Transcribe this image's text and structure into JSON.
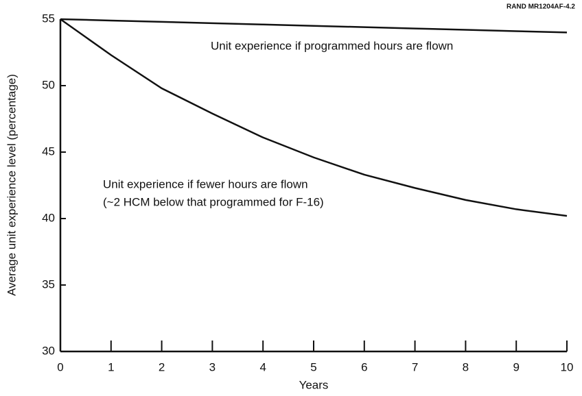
{
  "chart_data": {
    "type": "line",
    "credit": "RAND MR1204AF-4.2",
    "xlabel": "Years",
    "ylabel": "Average unit experience level (percentage)",
    "x": [
      0,
      1,
      2,
      3,
      4,
      5,
      6,
      7,
      8,
      9,
      10
    ],
    "series": [
      {
        "name": "Unit experience if programmed hours are flown",
        "color": "#111111",
        "values": [
          55,
          54.9,
          54.8,
          54.7,
          54.6,
          54.5,
          54.4,
          54.3,
          54.2,
          54.1,
          54.0
        ]
      },
      {
        "name": "Unit experience if fewer hours are flown",
        "color": "#111111",
        "values": [
          55,
          52.3,
          49.8,
          47.9,
          46.1,
          44.6,
          43.3,
          42.3,
          41.4,
          40.7,
          40.2
        ]
      }
    ],
    "annotations": [
      "Unit experience if programmed hours are flown",
      "Unit experience if fewer hours are flown",
      "(~2 HCM below that programmed for F-16)"
    ],
    "xlim": [
      0,
      10
    ],
    "xticks": [
      0,
      1,
      2,
      3,
      4,
      5,
      6,
      7,
      8,
      9,
      10
    ],
    "ylim": [
      30,
      55
    ],
    "yticks": [
      30,
      35,
      40,
      45,
      50,
      55
    ],
    "grid": false
  }
}
